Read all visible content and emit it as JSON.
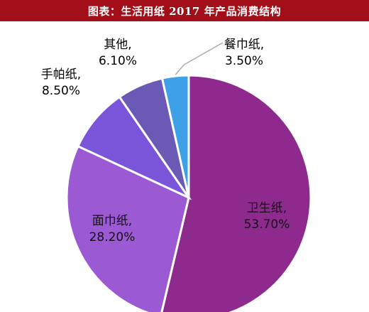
{
  "title": "图表：生活用纸 2017 年产品消费结构",
  "chart_data": {
    "type": "pie",
    "title": "图表：生活用纸 2017 年产品消费结构",
    "slices": [
      {
        "name": "卫生纸",
        "value": 53.7,
        "label": "53.70%",
        "color": "#8e2a8e"
      },
      {
        "name": "面巾纸",
        "value": 28.2,
        "label": "28.20%",
        "color": "#9b59d4"
      },
      {
        "name": "手帕纸",
        "value": 8.5,
        "label": "8.50%",
        "color": "#7b55d9"
      },
      {
        "name": "其他",
        "value": 6.1,
        "label": "6.10%",
        "color": "#6a5ab6"
      },
      {
        "name": "餐巾纸",
        "value": 3.5,
        "label": "3.50%",
        "color": "#3ea0e6"
      }
    ]
  }
}
